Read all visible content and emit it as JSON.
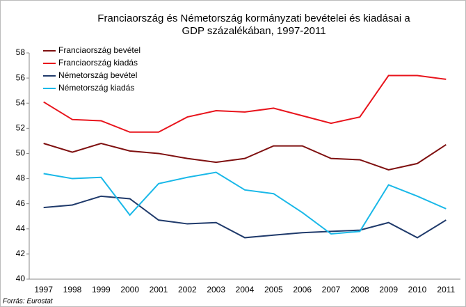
{
  "chart_data": {
    "type": "line",
    "title": [
      "Franciaország és Németország kormányzati bevételei és kiadásai a",
      "GDP százalékában, 1997-2011"
    ],
    "categories": [
      "1997",
      "1998",
      "1999",
      "2000",
      "2001",
      "2002",
      "2003",
      "2004",
      "2005",
      "2006",
      "2007",
      "2008",
      "2009",
      "2010",
      "2011"
    ],
    "series": [
      {
        "name": "Franciaország bevétel",
        "color": "#7f1010",
        "values": [
          50.8,
          50.1,
          50.8,
          50.2,
          50.0,
          49.6,
          49.3,
          49.6,
          50.6,
          50.6,
          49.6,
          49.5,
          48.7,
          49.2,
          50.7
        ]
      },
      {
        "name": "Franciaország kiadás",
        "color": "#e8141c",
        "values": [
          54.1,
          52.7,
          52.6,
          51.7,
          51.7,
          52.9,
          53.4,
          53.3,
          53.6,
          53.0,
          52.4,
          52.9,
          56.2,
          56.2,
          55.9
        ]
      },
      {
        "name": "Németország bevétel",
        "color": "#1f3a6b",
        "values": [
          45.7,
          45.9,
          46.6,
          46.4,
          44.7,
          44.4,
          44.5,
          43.3,
          43.5,
          43.7,
          43.8,
          43.9,
          44.5,
          43.3,
          44.7
        ]
      },
      {
        "name": "Németország kiadás",
        "color": "#19b8e8",
        "values": [
          48.4,
          48.0,
          48.1,
          45.1,
          47.6,
          48.1,
          48.5,
          47.1,
          46.8,
          45.3,
          43.6,
          43.8,
          47.5,
          46.6,
          45.6
        ]
      }
    ],
    "ylim": [
      40,
      58
    ],
    "yticks": [
      40,
      42,
      44,
      46,
      48,
      50,
      52,
      54,
      56,
      58
    ],
    "legend": "upper-left",
    "source": "Forrás: Eurostat"
  }
}
